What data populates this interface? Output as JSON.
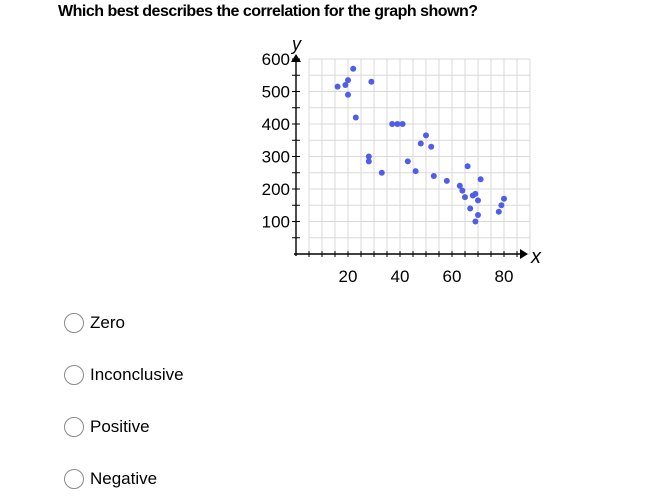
{
  "question": "Which best describes the correlation for the graph shown?",
  "chart_data": {
    "type": "scatter",
    "xlabel": "x",
    "ylabel": "y",
    "xlim": [
      0,
      90
    ],
    "ylim": [
      0,
      600
    ],
    "x_ticks": [
      20,
      40,
      60,
      80
    ],
    "y_ticks": [
      100,
      200,
      300,
      400,
      500,
      600
    ],
    "grid": true,
    "point_color": "#4f5de8",
    "points": [
      [
        16,
        515
      ],
      [
        19,
        520
      ],
      [
        20,
        535
      ],
      [
        20,
        490
      ],
      [
        22,
        570
      ],
      [
        29,
        530
      ],
      [
        23,
        420
      ],
      [
        28,
        300
      ],
      [
        28,
        285
      ],
      [
        33,
        250
      ],
      [
        37,
        400
      ],
      [
        39,
        400
      ],
      [
        41,
        400
      ],
      [
        43,
        285
      ],
      [
        46,
        255
      ],
      [
        48,
        340
      ],
      [
        50,
        365
      ],
      [
        52,
        330
      ],
      [
        53,
        240
      ],
      [
        58,
        225
      ],
      [
        63,
        210
      ],
      [
        64,
        195
      ],
      [
        65,
        175
      ],
      [
        66,
        270
      ],
      [
        67,
        140
      ],
      [
        68,
        180
      ],
      [
        69,
        185
      ],
      [
        69,
        100
      ],
      [
        70,
        165
      ],
      [
        70,
        120
      ],
      [
        71,
        230
      ],
      [
        78,
        130
      ],
      [
        79,
        150
      ],
      [
        80,
        170
      ]
    ]
  },
  "options": [
    {
      "label": "Zero"
    },
    {
      "label": "Inconclusive"
    },
    {
      "label": "Positive"
    },
    {
      "label": "Negative"
    }
  ]
}
